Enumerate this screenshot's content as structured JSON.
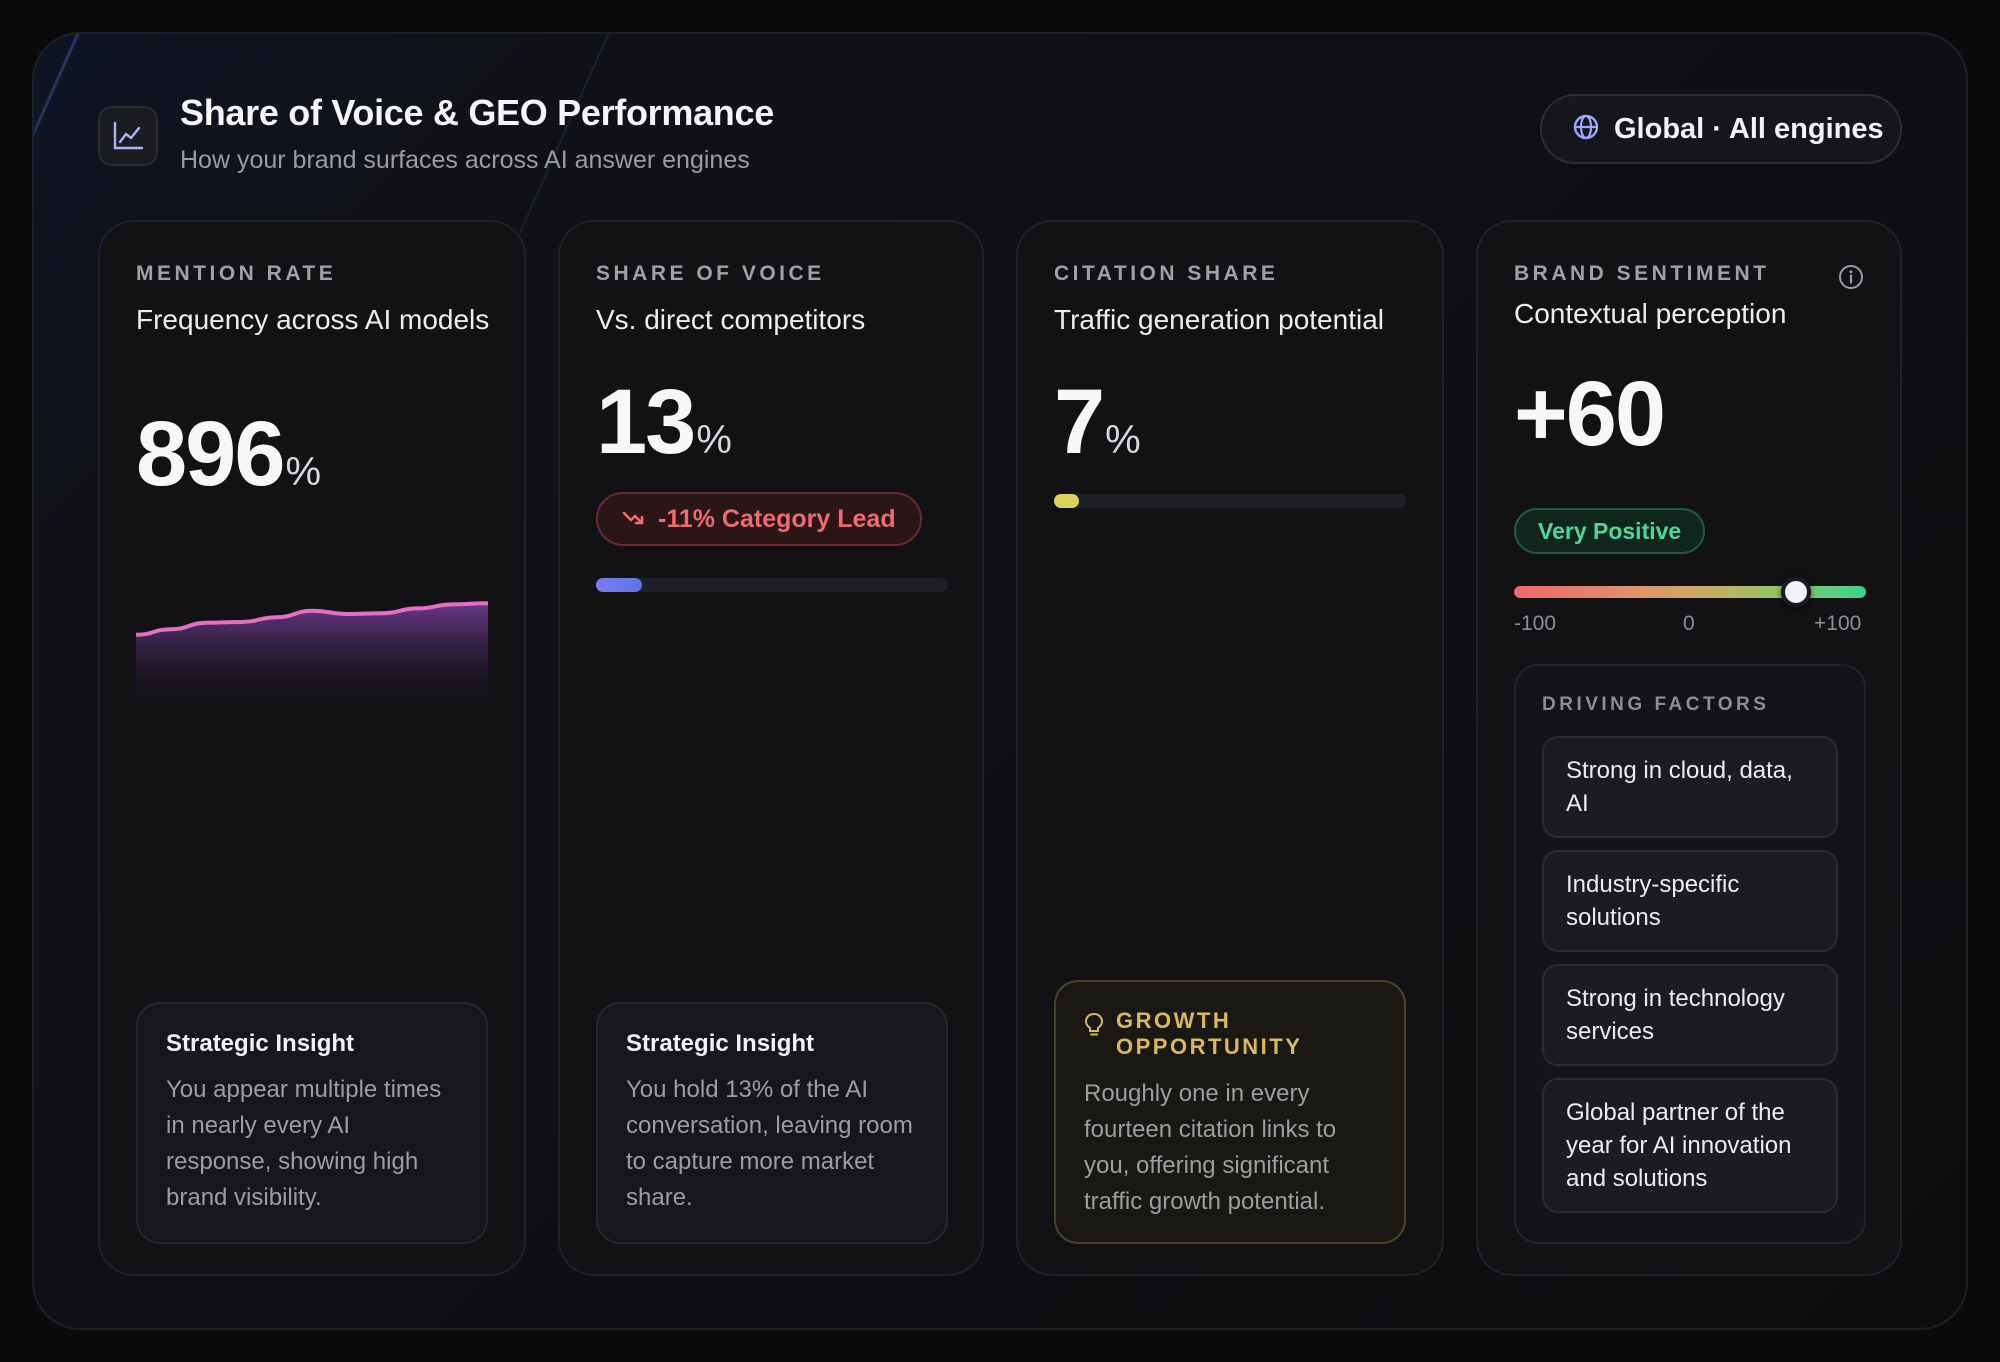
{
  "header": {
    "title": "Share of Voice & GEO Performance",
    "subtitle": "How your brand surfaces across AI answer engines",
    "scope_label": "Global · All engines",
    "icon": "line-chart-icon",
    "scope_icon": "globe-icon"
  },
  "cards": {
    "mention": {
      "eyebrow": "MENTION RATE",
      "subtitle": "Frequency across AI models",
      "value": "896",
      "unit": "%",
      "sparkline": [
        0.18,
        0.32,
        0.48,
        0.5,
        0.62,
        0.78,
        0.7,
        0.72,
        0.84,
        0.94,
        0.97
      ],
      "insight_title": "Strategic Insight",
      "insight_body": "You appear multiple times in nearly every AI response, showing high brand visibility."
    },
    "sov": {
      "eyebrow": "SHARE OF VOICE",
      "subtitle": "Vs. direct competitors",
      "value": "13",
      "unit": "%",
      "delta_label": "-11% Category Lead",
      "delta_icon": "trend-down-icon",
      "progress": 0.13,
      "insight_title": "Strategic Insight",
      "insight_body": "You hold 13% of the AI conversation, leaving room to capture more market share."
    },
    "citation": {
      "eyebrow": "CITATION SHARE",
      "subtitle": "Traffic generation potential",
      "value": "7",
      "unit": "%",
      "progress": 0.07,
      "growth_title": "GROWTH OPPORTUNITY",
      "growth_icon": "lightbulb-icon",
      "growth_body": "Roughly one in every fourteen citation links to you, offering significant traffic growth potential."
    },
    "sentiment": {
      "eyebrow": "BRAND SENTIMENT",
      "subtitle": "Contextual perception",
      "value": "+60",
      "score": 60,
      "range": [
        -100,
        100
      ],
      "badge": "Very Positive",
      "scale_min": "-100",
      "scale_mid": "0",
      "scale_max": "+100",
      "info_icon": "info-icon",
      "factors_title": "DRIVING FACTORS",
      "factors": [
        "Strong in cloud, data, AI",
        "Industry-specific solutions",
        "Strong in technology services",
        "Global partner of the year for AI innovation and solutions"
      ]
    }
  },
  "colors": {
    "sparkline": "#e66fc4",
    "sov_bar_start": "#7b7cf0",
    "sov_bar_end": "#5e73e8",
    "citation_bar": "#d9d35a",
    "positive": "#4fd79a",
    "negative": "#f06a6e",
    "gold": "#d9b95a"
  }
}
